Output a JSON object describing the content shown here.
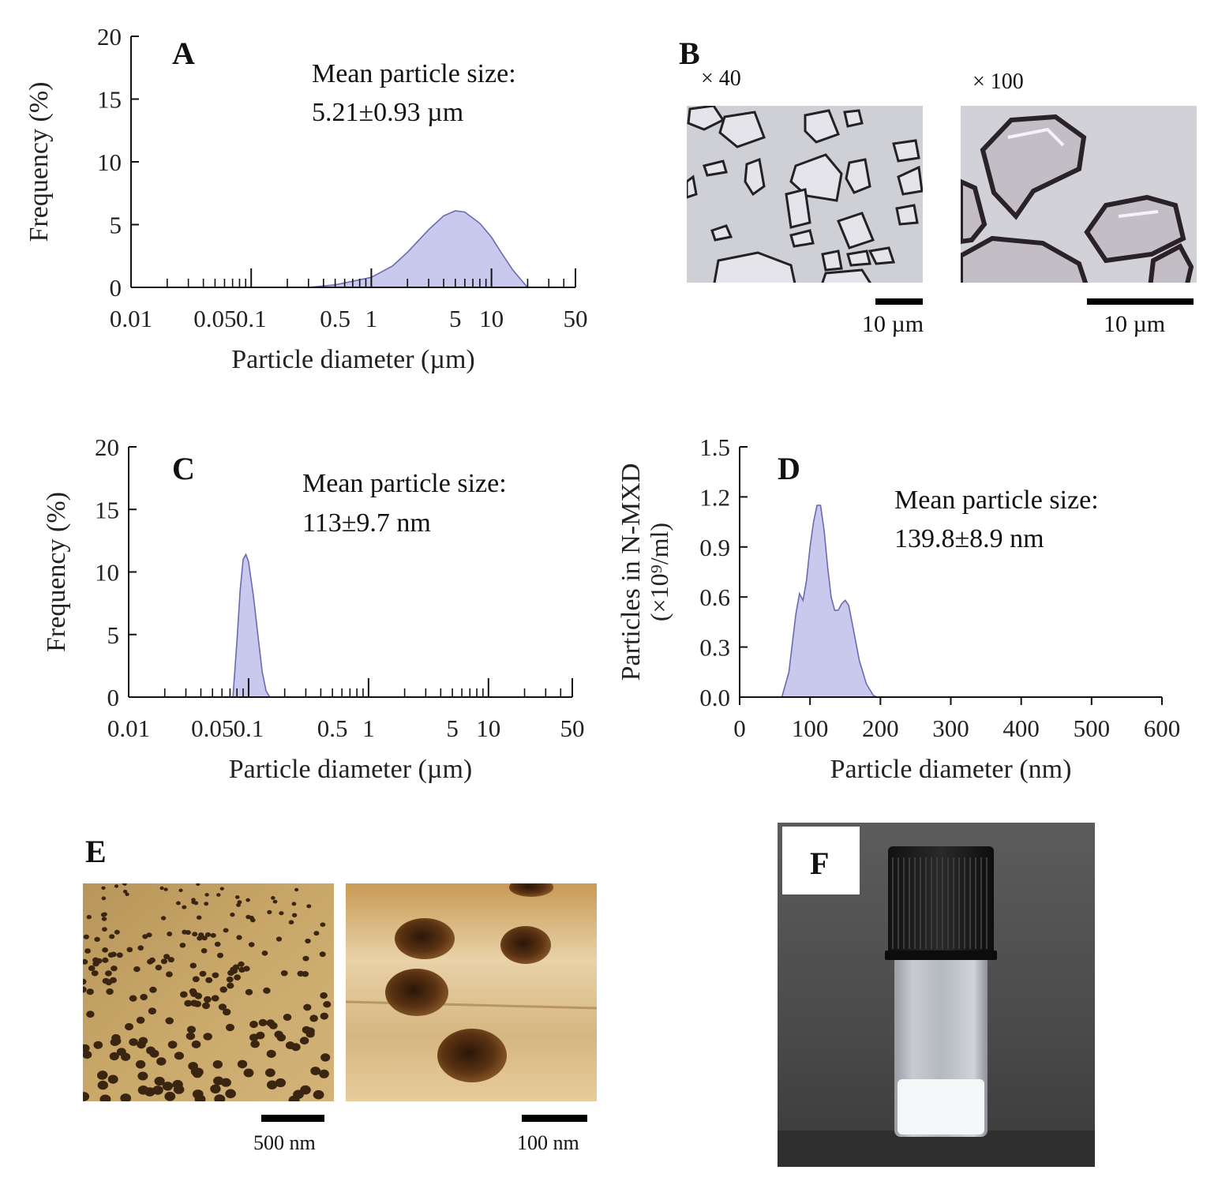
{
  "chart_data": [
    {
      "panel": "A",
      "type": "area",
      "x_scale": "log",
      "xlim": [
        0.01,
        50
      ],
      "ylim": [
        0,
        20
      ],
      "xlabel": "Particle diameter (µm)",
      "ylabel": "Frequency (%)",
      "xticks": [
        "0.01",
        "0.05",
        "0.1",
        "0.5",
        "1",
        "5",
        "10",
        "50"
      ],
      "yticks": [
        "0",
        "5",
        "10",
        "15",
        "20"
      ],
      "annotation_line1": "Mean particle size:",
      "annotation_line2": "5.21±0.93 µm",
      "x": [
        0.3,
        0.5,
        1.0,
        1.5,
        2.0,
        3.0,
        4.0,
        5.0,
        6.0,
        8.0,
        10.0,
        12.0,
        15.0,
        18.0,
        20.0
      ],
      "y": [
        0,
        0.2,
        0.8,
        1.7,
        2.8,
        4.6,
        5.7,
        6.1,
        6.0,
        5.1,
        4.0,
        2.8,
        1.4,
        0.5,
        0
      ],
      "color": "#c9c9ee"
    },
    {
      "panel": "C",
      "type": "area",
      "x_scale": "log",
      "xlim": [
        0.01,
        50
      ],
      "ylim": [
        0,
        20
      ],
      "xlabel": "Particle diameter (µm)",
      "ylabel": "Frequency (%)",
      "xticks": [
        "0.01",
        "0.05",
        "0.1",
        "0.5",
        "1",
        "5",
        "10",
        "50"
      ],
      "yticks": [
        "0",
        "5",
        "10",
        "15",
        "20"
      ],
      "annotation_line1": "Mean particle size:",
      "annotation_line2": "113±9.7 nm",
      "x": [
        0.074,
        0.08,
        0.085,
        0.09,
        0.095,
        0.1,
        0.11,
        0.12,
        0.13,
        0.14,
        0.15
      ],
      "y": [
        0,
        4.5,
        8.5,
        11.0,
        11.4,
        10.8,
        8.0,
        4.8,
        2.0,
        0.5,
        0
      ],
      "color": "#c9c9ee"
    },
    {
      "panel": "D",
      "type": "area",
      "x_scale": "linear",
      "xlim": [
        0,
        600
      ],
      "ylim": [
        0,
        1.5
      ],
      "xlabel": "Particle diameter (nm)",
      "ylabel_line1": "Particles in N-MXD",
      "ylabel_line2": "(×10⁹/ml)",
      "xticks": [
        "0",
        "100",
        "200",
        "300",
        "400",
        "500",
        "600"
      ],
      "yticks": [
        "0.0",
        "0.3",
        "0.6",
        "0.9",
        "1.2",
        "1.5"
      ],
      "annotation_line1": "Mean particle size:",
      "annotation_line2": "139.8±8.9 nm",
      "x": [
        60,
        70,
        80,
        85,
        90,
        95,
        100,
        105,
        110,
        115,
        120,
        125,
        130,
        135,
        140,
        145,
        150,
        155,
        160,
        170,
        180,
        190,
        195
      ],
      "y": [
        0,
        0.15,
        0.5,
        0.62,
        0.58,
        0.7,
        0.9,
        1.05,
        1.15,
        1.15,
        1.0,
        0.78,
        0.6,
        0.52,
        0.52,
        0.56,
        0.58,
        0.55,
        0.44,
        0.22,
        0.08,
        0.01,
        0
      ],
      "color": "#c9c9ee"
    }
  ],
  "panels": {
    "a": "A",
    "b": "B",
    "c": "C",
    "d": "D",
    "e": "E",
    "f": "F"
  },
  "microscopy_b": {
    "mag_left": "× 40",
    "mag_right": "× 100",
    "scale_left": "10 µm",
    "scale_right": "10 µm"
  },
  "afm_e": {
    "scale_left": "500 nm",
    "scale_right": "100 nm"
  }
}
